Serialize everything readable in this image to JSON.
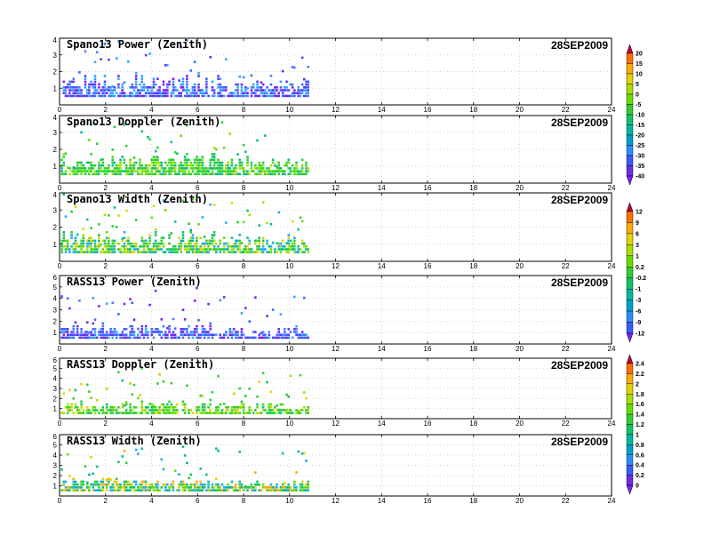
{
  "chart_data": {
    "type": "scatter",
    "x_ticks": [
      0,
      2,
      4,
      6,
      8,
      10,
      12,
      14,
      16,
      18,
      20,
      22,
      24
    ],
    "xlim": [
      0,
      24
    ],
    "data_end_x": 10.8,
    "grid": true,
    "panels": [
      {
        "title": "Spano13 Power (Zenith)",
        "date": "28SEP2009",
        "ylim": [
          0,
          4
        ],
        "y_ticks": [
          1,
          2,
          3,
          4
        ],
        "colorbar": "power",
        "colors": [
          "#7f1fff",
          "#5a3cff",
          "#3a6cff",
          "#4d7dff",
          "#2fa8ff",
          "#2aa6ff",
          "#6b2fe0"
        ]
      },
      {
        "title": "Spano13 Doppler (Zenith)",
        "date": "28SEP2009",
        "ylim": [
          0,
          4
        ],
        "y_ticks": [
          1,
          2,
          3,
          4
        ],
        "colorbar": "power",
        "colors": [
          "#33cc33",
          "#22dd22",
          "#66dd00",
          "#11c466",
          "#00b8a0",
          "#aadd00",
          "#33cc33"
        ]
      },
      {
        "title": "Spano13 Width (Zenith)",
        "date": "28SEP2009",
        "ylim": [
          0,
          4
        ],
        "y_ticks": [
          1,
          2,
          3,
          4
        ],
        "colorbar": "width",
        "colors": [
          "#00b8a0",
          "#33cc33",
          "#22aaff",
          "#66dd00",
          "#aadd00",
          "#e6d200",
          "#11c466"
        ]
      },
      {
        "title": "RASS13 Power (Zenith)",
        "date": "28SEP2009",
        "ylim": [
          0,
          6
        ],
        "y_ticks": [
          1,
          2,
          3,
          4,
          5,
          6
        ],
        "colorbar": "width",
        "colors": [
          "#7f1fff",
          "#5a3cff",
          "#3a6cff",
          "#4d7dff",
          "#2fa8ff",
          "#6b2fe0",
          "#3a6cff"
        ]
      },
      {
        "title": "RASS13 Doppler (Zenith)",
        "date": "28SEP2009",
        "ylim": [
          0,
          6
        ],
        "y_ticks": [
          1,
          2,
          3,
          4,
          5,
          6
        ],
        "colorbar": "rass",
        "colors": [
          "#33cc33",
          "#22dd22",
          "#66dd00",
          "#aadd00",
          "#11c466",
          "#e6d200",
          "#33cc33"
        ]
      },
      {
        "title": "RASS13 Width (Zenith)",
        "date": "28SEP2009",
        "ylim": [
          0,
          6
        ],
        "y_ticks": [
          1,
          2,
          3,
          4,
          5,
          6
        ],
        "colorbar": "rass",
        "colors": [
          "#00b8a0",
          "#33cc33",
          "#22aaff",
          "#66dd00",
          "#e6d200",
          "#ffaa00",
          "#11c466"
        ]
      }
    ],
    "colorbars": [
      {
        "id": "power",
        "labels": [
          "20",
          "15",
          "10",
          "5",
          "0",
          "-5",
          "-10",
          "-15",
          "-20",
          "-25",
          "-30",
          "-35",
          "-40"
        ],
        "colors": [
          "#ff6f00",
          "#ffaa00",
          "#e6d200",
          "#aadd00",
          "#66dd00",
          "#33cc33",
          "#11c466",
          "#00b8a0",
          "#00a0c8",
          "#2f8cff",
          "#3a5cff",
          "#6b2fe0"
        ],
        "top_cap": "#cc0033",
        "bottom_cap": "#7f1fff"
      },
      {
        "id": "width",
        "labels": [
          "12",
          "9",
          "6",
          "3",
          "1",
          "0.2",
          "-0.2",
          "-1",
          "-3",
          "-6",
          "-9",
          "-12"
        ],
        "colors": [
          "#ff6f00",
          "#ffaa00",
          "#e6d200",
          "#aadd00",
          "#66dd00",
          "#33cc33",
          "#11c466",
          "#00b8a0",
          "#00a0c8",
          "#2f8cff",
          "#3a5cff"
        ],
        "top_cap": "#cc0033",
        "bottom_cap": "#7f1fff"
      },
      {
        "id": "rass",
        "labels": [
          "2.4",
          "2.2",
          "2",
          "1.8",
          "1.6",
          "1.4",
          "1.2",
          "1",
          "0.8",
          "0.6",
          "0.4",
          "0.2",
          "0"
        ],
        "colors": [
          "#ff6f00",
          "#ffaa00",
          "#e6d200",
          "#aadd00",
          "#66dd00",
          "#33cc33",
          "#11c466",
          "#00b8a0",
          "#00a0c8",
          "#2f8cff",
          "#3a5cff",
          "#6b2fe0"
        ],
        "top_cap": "#cc0033",
        "bottom_cap": "#7f1fff"
      }
    ]
  }
}
